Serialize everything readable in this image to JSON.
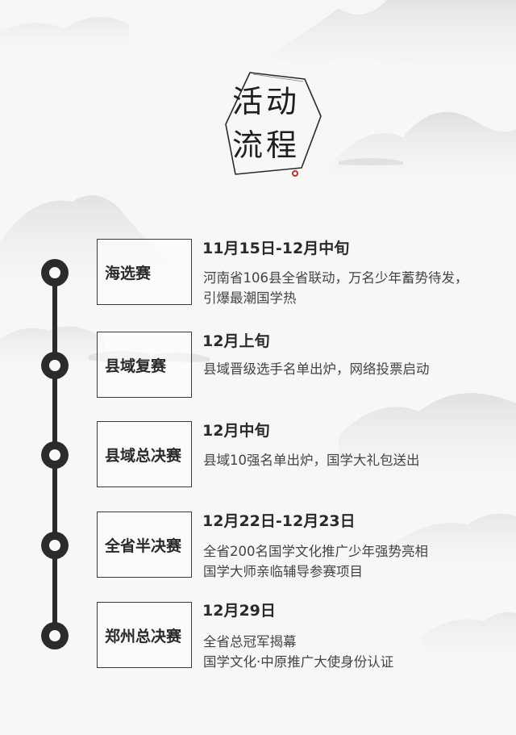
{
  "title": {
    "line1": "活动",
    "line2": "流程"
  },
  "stages": [
    {
      "name": "海选赛",
      "date": "11月15日-12月中旬",
      "lines": [
        "河南省106县全省联动，万名少年蓄势待发，",
        "引爆最潮国学热"
      ]
    },
    {
      "name": "县域复赛",
      "date": "12月上旬",
      "lines": [
        "县域晋级选手名单出炉，网络投票启动"
      ]
    },
    {
      "name": "县域总决赛",
      "date": "12月中旬",
      "lines": [
        "县域10强名单出炉，国学大礼包送出"
      ]
    },
    {
      "name": "全省半决赛",
      "date": "12月22日-12月23日",
      "lines": [
        "全省200名国学文化推广少年强势亮相",
        "国学大师亲临辅导参赛项目"
      ]
    },
    {
      "name": "郑州总决赛",
      "date": "12月29日",
      "lines": [
        "全省总冠军揭幕",
        "国学文化·中原推广大使身份认证"
      ]
    }
  ]
}
